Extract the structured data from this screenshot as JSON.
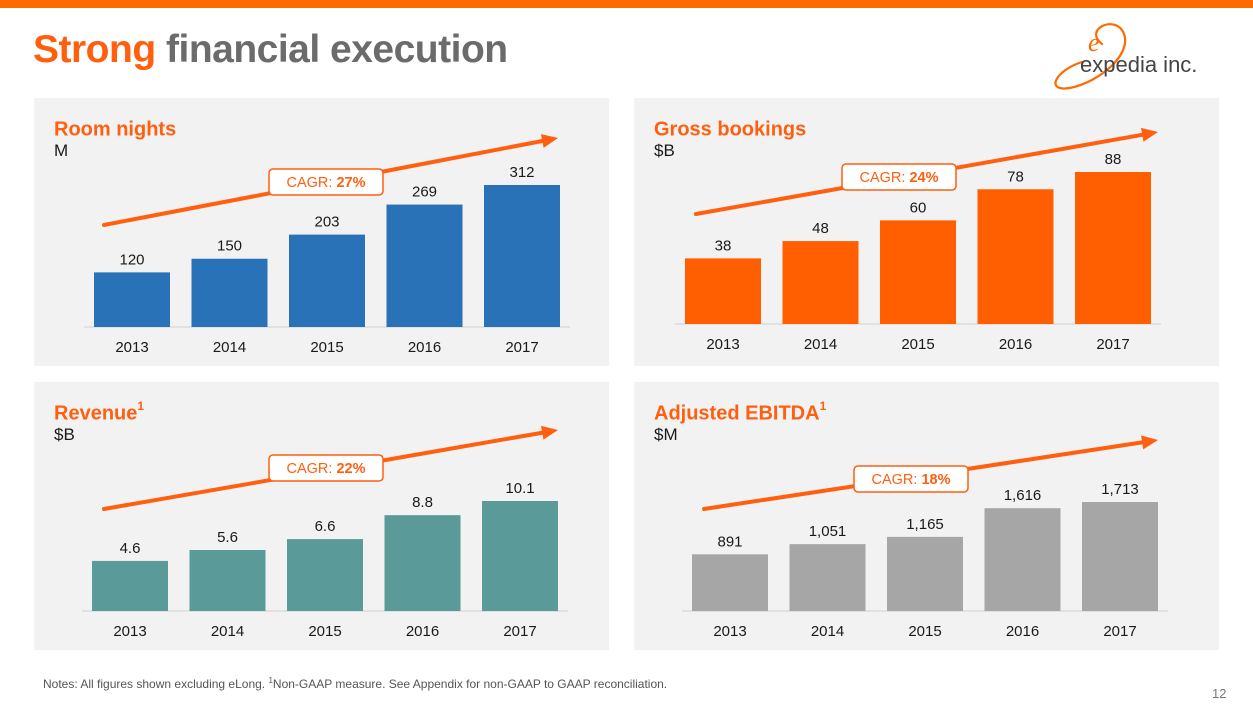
{
  "title": {
    "highlight": "Strong",
    "rest": "financial execution"
  },
  "logo": {
    "text": "expedia inc.",
    "mark": "e"
  },
  "colors": {
    "accent": "#ff5f0f",
    "topbar": "#ff6a00",
    "title_gray": "#6b6b6b"
  },
  "chart_data": [
    {
      "type": "bar",
      "title": "Room nights",
      "title_sup": "",
      "unit": "M",
      "categories": [
        "2013",
        "2014",
        "2015",
        "2016",
        "2017"
      ],
      "values": [
        120,
        150,
        203,
        269,
        312
      ],
      "labels": [
        "120",
        "150",
        "203",
        "269",
        "312"
      ],
      "ylim": [
        0,
        312
      ],
      "color": "#2a72b8",
      "cagr_prefix": "CAGR: ",
      "cagr_value": "27%"
    },
    {
      "type": "bar",
      "title": "Gross bookings",
      "title_sup": "",
      "unit": "$B",
      "categories": [
        "2013",
        "2014",
        "2015",
        "2016",
        "2017"
      ],
      "values": [
        38,
        48,
        60,
        78,
        88
      ],
      "labels": [
        "38",
        "48",
        "60",
        "78",
        "88"
      ],
      "ylim": [
        0,
        88
      ],
      "color": "#ff5f00",
      "cagr_prefix": "CAGR: ",
      "cagr_value": "24%"
    },
    {
      "type": "bar",
      "title": "Revenue",
      "title_sup": "1",
      "unit": "$B",
      "categories": [
        "2013",
        "2014",
        "2015",
        "2016",
        "2017"
      ],
      "values": [
        4.6,
        5.6,
        6.6,
        8.8,
        10.1
      ],
      "labels": [
        "4.6",
        "5.6",
        "6.6",
        "8.8",
        "10.1"
      ],
      "ylim": [
        0,
        10.1
      ],
      "color": "#5a9a98",
      "cagr_prefix": "CAGR: ",
      "cagr_value": "22%"
    },
    {
      "type": "bar",
      "title": "Adjusted EBITDA",
      "title_sup": "1",
      "unit": "$M",
      "categories": [
        "2013",
        "2014",
        "2015",
        "2016",
        "2017"
      ],
      "values": [
        891,
        1051,
        1165,
        1616,
        1713
      ],
      "labels": [
        "891",
        "1,051",
        "1,165",
        "1,616",
        "1,713"
      ],
      "ylim": [
        0,
        1713
      ],
      "color": "#a6a6a6",
      "cagr_prefix": "CAGR: ",
      "cagr_value": "18%"
    }
  ],
  "footnote": {
    "text1": "Notes: All figures shown excluding eLong. ",
    "sup": "1",
    "text2": "Non-GAAP measure. See Appendix for non-GAAP to GAAP reconciliation."
  },
  "page_number": "12"
}
